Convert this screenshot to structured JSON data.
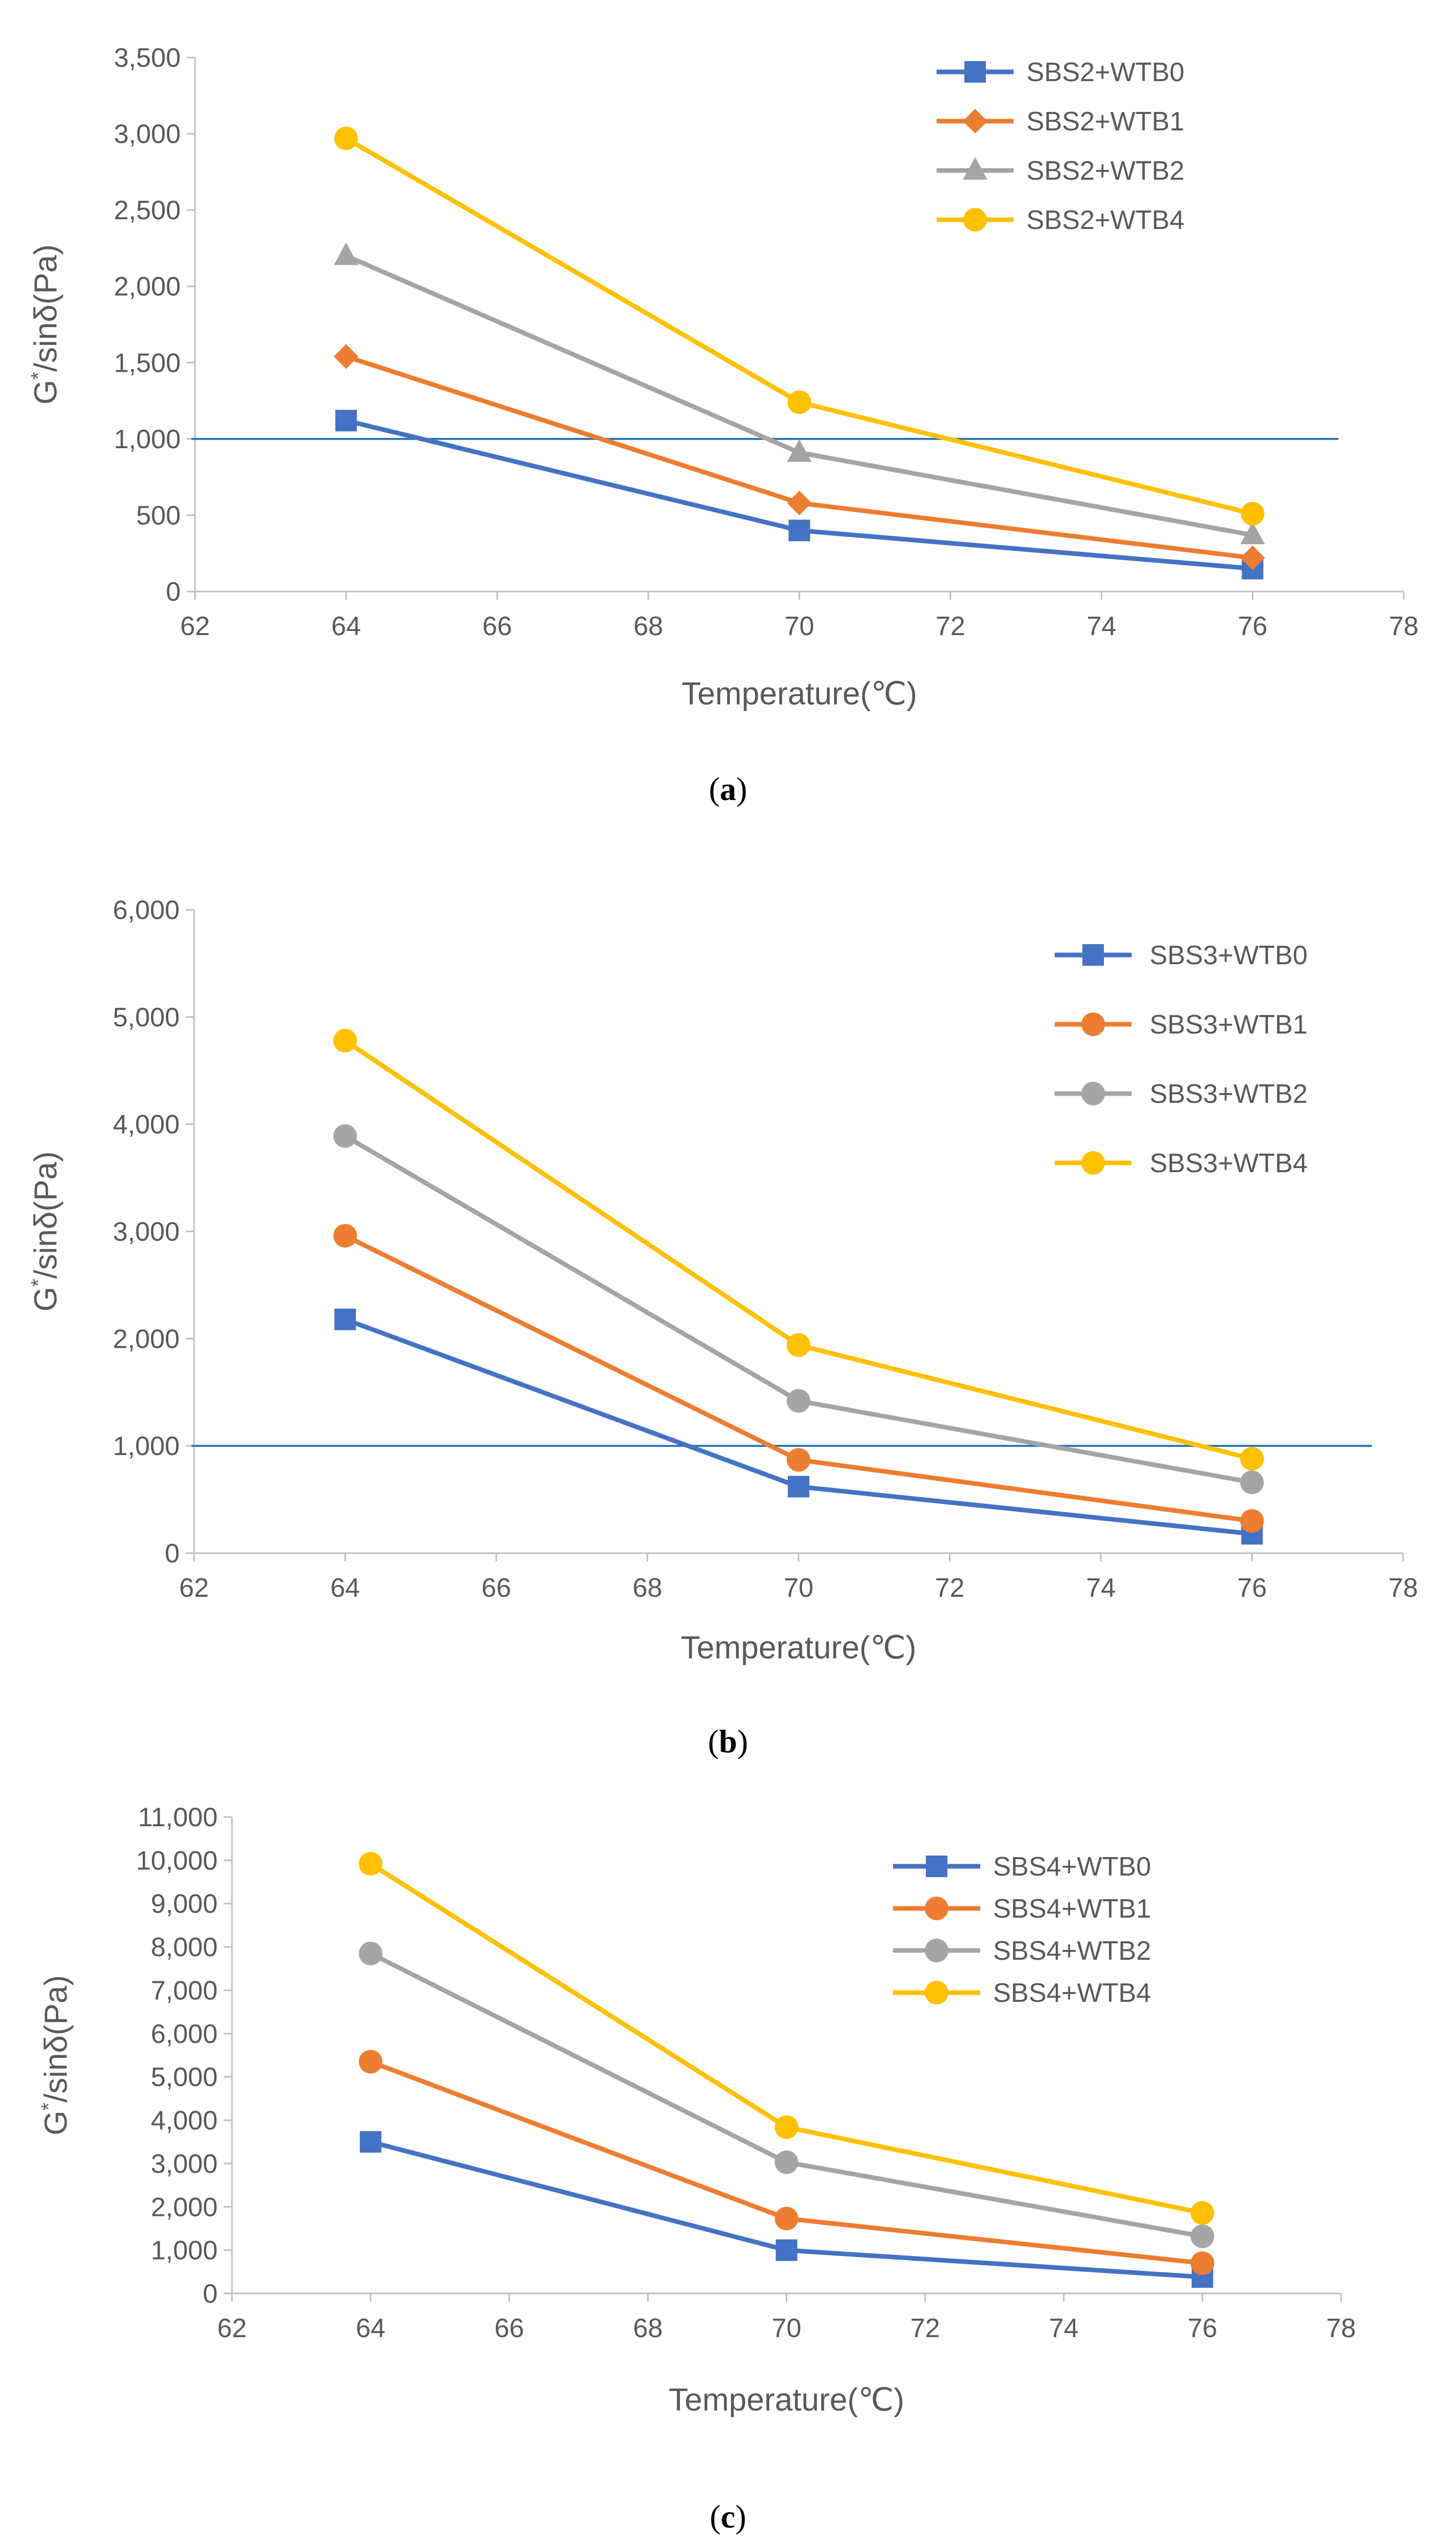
{
  "chart_data": [
    {
      "type": "line",
      "panel_label": "a",
      "xlabel": "Temperature(℃)",
      "ylabel_main": "G",
      "ylabel_sup": "*",
      "ylabel_rest": "/sinδ(Pa)",
      "xlim": [
        62,
        78
      ],
      "ylim": [
        0,
        3500
      ],
      "xticks": [
        "62",
        "64",
        "66",
        "68",
        "70",
        "72",
        "74",
        "76",
        "78"
      ],
      "yticks": [
        "0",
        "500",
        "1,000",
        "1,500",
        "2,000",
        "2,500",
        "3,000",
        "3,500"
      ],
      "reference_line": 1000,
      "legend_position": "top-right",
      "x": [
        64,
        70,
        76
      ],
      "series": [
        {
          "name": "SBS2+WTB0",
          "values": [
            1120,
            400,
            150
          ],
          "color": "#4472C4",
          "marker": "square"
        },
        {
          "name": "SBS2+WTB1",
          "values": [
            1540,
            580,
            220
          ],
          "color": "#ED7D31",
          "marker": "diamond"
        },
        {
          "name": "SBS2+WTB2",
          "values": [
            2200,
            910,
            370
          ],
          "color": "#A5A5A5",
          "marker": "triangle"
        },
        {
          "name": "SBS2+WTB4",
          "values": [
            2970,
            1240,
            510
          ],
          "color": "#FFC000",
          "marker": "circle"
        }
      ]
    },
    {
      "type": "line",
      "panel_label": "b",
      "xlabel": "Temperature(℃)",
      "ylabel_main": "G",
      "ylabel_sup": "*",
      "ylabel_rest": "/sinδ(Pa)",
      "xlim": [
        62,
        78
      ],
      "ylim": [
        0,
        6000
      ],
      "xticks": [
        "62",
        "64",
        "66",
        "68",
        "70",
        "72",
        "74",
        "76",
        "78"
      ],
      "yticks": [
        "0",
        "1,000",
        "2,000",
        "3,000",
        "4,000",
        "5,000",
        "6,000"
      ],
      "reference_line": 1000,
      "legend_position": "top-right",
      "x": [
        64,
        70,
        76
      ],
      "series": [
        {
          "name": "SBS3+WTB0",
          "values": [
            2180,
            620,
            180
          ],
          "color": "#4472C4",
          "marker": "square"
        },
        {
          "name": "SBS3+WTB1",
          "values": [
            2960,
            870,
            300
          ],
          "color": "#ED7D31",
          "marker": "circle"
        },
        {
          "name": "SBS3+WTB2",
          "values": [
            3890,
            1420,
            660
          ],
          "color": "#A5A5A5",
          "marker": "circle"
        },
        {
          "name": "SBS3+WTB4",
          "values": [
            4780,
            1940,
            880
          ],
          "color": "#FFC000",
          "marker": "circle"
        }
      ]
    },
    {
      "type": "line",
      "panel_label": "c",
      "xlabel": "Temperature(℃)",
      "ylabel_main": "G",
      "ylabel_sup": "*",
      "ylabel_rest": "/sinδ(Pa)",
      "xlim": [
        62,
        78
      ],
      "ylim": [
        0,
        11000
      ],
      "xticks": [
        "62",
        "64",
        "66",
        "68",
        "70",
        "72",
        "74",
        "76",
        "78"
      ],
      "yticks": [
        "0",
        "1,000",
        "2,000",
        "3,000",
        "4,000",
        "5,000",
        "6,000",
        "7,000",
        "8,000",
        "9,000",
        "10,000",
        "11,000"
      ],
      "reference_line": null,
      "legend_position": "top-right",
      "x": [
        64,
        70,
        76
      ],
      "series": [
        {
          "name": "SBS4+WTB0",
          "values": [
            3500,
            1000,
            380
          ],
          "color": "#4472C4",
          "marker": "square"
        },
        {
          "name": "SBS4+WTB1",
          "values": [
            5350,
            1730,
            700
          ],
          "color": "#ED7D31",
          "marker": "circle"
        },
        {
          "name": "SBS4+WTB2",
          "values": [
            7850,
            3030,
            1320
          ],
          "color": "#A5A5A5",
          "marker": "circle"
        },
        {
          "name": "SBS4+WTB4",
          "values": [
            9920,
            3840,
            1860
          ],
          "color": "#FFC000",
          "marker": "circle"
        }
      ]
    }
  ],
  "captions": [
    {
      "open": "(",
      "label": "a",
      "close": ")"
    },
    {
      "open": "(",
      "label": "b",
      "close": ")"
    },
    {
      "open": "(",
      "label": "c",
      "close": ")"
    }
  ]
}
